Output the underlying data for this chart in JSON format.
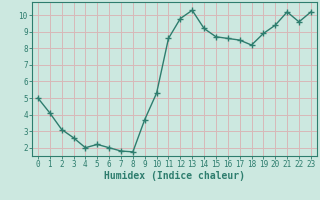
{
  "x": [
    0,
    1,
    2,
    3,
    4,
    5,
    6,
    7,
    8,
    9,
    10,
    11,
    12,
    13,
    14,
    15,
    16,
    17,
    18,
    19,
    20,
    21,
    22,
    23
  ],
  "y": [
    5.0,
    4.1,
    3.1,
    2.6,
    2.0,
    2.2,
    2.0,
    1.8,
    1.75,
    3.7,
    5.3,
    8.6,
    9.8,
    10.3,
    9.2,
    8.7,
    8.6,
    8.5,
    8.2,
    8.9,
    9.4,
    10.2,
    9.6,
    10.2
  ],
  "line_color": "#2e7d6e",
  "marker": "+",
  "marker_size": 4,
  "bg_color": "#cce8e0",
  "grid_color": "#d8b8b8",
  "xlabel": "Humidex (Indice chaleur)",
  "xlim": [
    -0.5,
    23.5
  ],
  "ylim": [
    1.5,
    10.8
  ],
  "yticks": [
    2,
    3,
    4,
    5,
    6,
    7,
    8,
    9,
    10
  ],
  "xticks": [
    0,
    1,
    2,
    3,
    4,
    5,
    6,
    7,
    8,
    9,
    10,
    11,
    12,
    13,
    14,
    15,
    16,
    17,
    18,
    19,
    20,
    21,
    22,
    23
  ],
  "xtick_labels": [
    "0",
    "1",
    "2",
    "3",
    "4",
    "5",
    "6",
    "7",
    "8",
    "9",
    "10",
    "11",
    "12",
    "13",
    "14",
    "15",
    "16",
    "17",
    "18",
    "19",
    "20",
    "21",
    "22",
    "23"
  ],
  "tick_color": "#2e7d6e",
  "label_fontsize": 7,
  "tick_fontsize": 5.5,
  "axis_color": "#2e7d6e",
  "linewidth": 1.0
}
